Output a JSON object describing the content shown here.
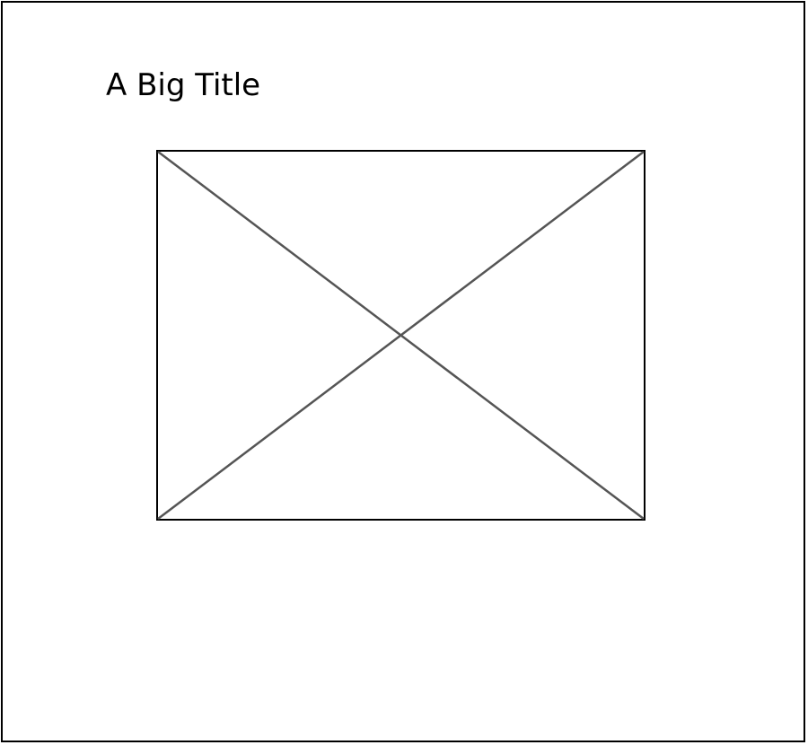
{
  "page": {
    "title": "A Big Title"
  },
  "image_placeholder": {
    "icon": "image-placeholder-icon",
    "border_color": "#000000",
    "cross_color": "#555555"
  }
}
